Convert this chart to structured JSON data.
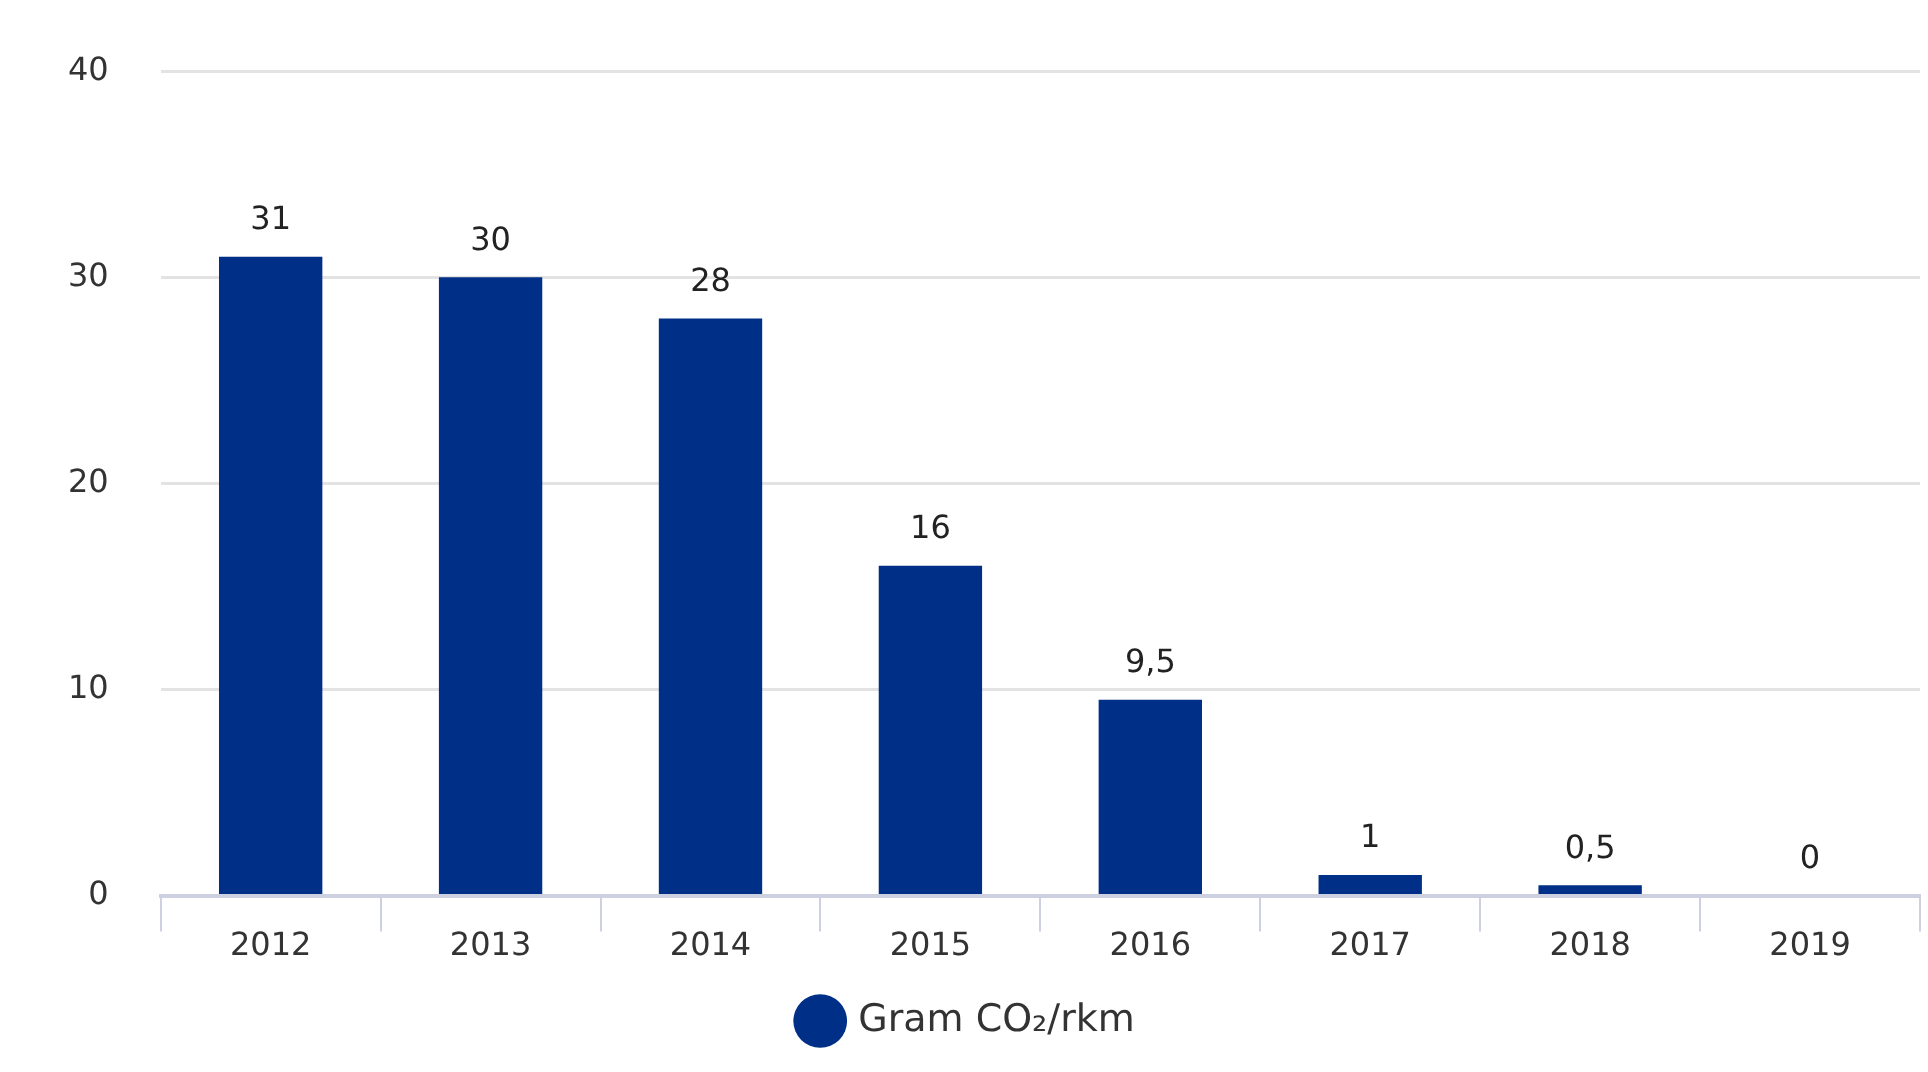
{
  "chart_data": {
    "type": "bar",
    "categories": [
      "2012",
      "2013",
      "2014",
      "2015",
      "2016",
      "2017",
      "2018",
      "2019"
    ],
    "series": [
      {
        "name": "Gram CO₂/rkm",
        "color": "#002f87",
        "values": [
          31,
          30,
          28,
          16,
          9.5,
          1,
          0.5,
          0
        ],
        "value_labels": [
          "31",
          "30",
          "28",
          "16",
          "9,5",
          "1",
          "0,5",
          "0"
        ]
      }
    ],
    "ylim": [
      0,
      40
    ],
    "yticks": [
      0,
      10,
      20,
      30,
      40
    ],
    "grid": "y",
    "legend": "bottom"
  }
}
